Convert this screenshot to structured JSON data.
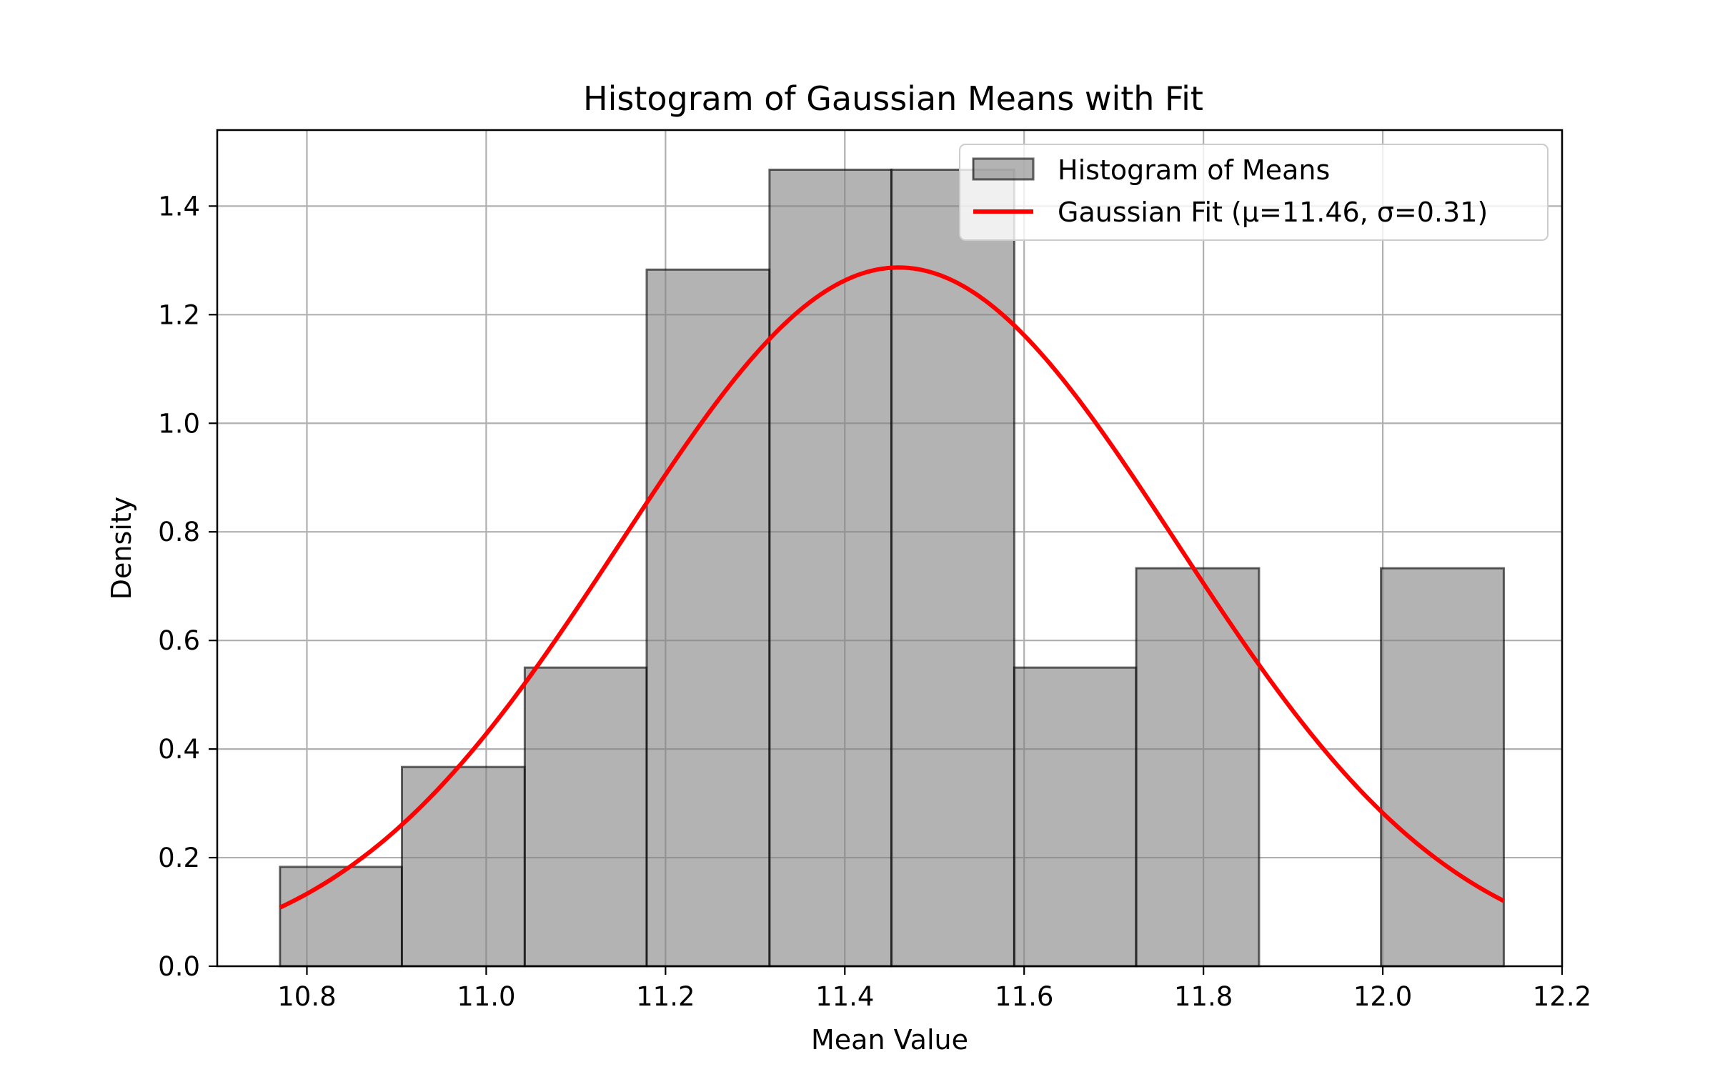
{
  "chart_data": {
    "type": "bar",
    "title": "Histogram of Gaussian Means with Fit",
    "xlabel": "Mean Value",
    "ylabel": "Density",
    "xlim": [
      10.7,
      12.2
    ],
    "ylim": [
      0.0,
      1.54
    ],
    "x_ticks": [
      "10.8",
      "11.0",
      "11.2",
      "11.4",
      "11.6",
      "11.8",
      "12.0",
      "12.2"
    ],
    "y_ticks": [
      "0.0",
      "0.2",
      "0.4",
      "0.6",
      "0.8",
      "1.0",
      "1.2",
      "1.4"
    ],
    "grid": true,
    "legend_position": "top-right",
    "bin_edges": [
      10.77,
      10.906,
      11.043,
      11.179,
      11.316,
      11.452,
      11.589,
      11.725,
      11.862,
      11.998,
      12.135
    ],
    "series": [
      {
        "name": "Histogram of Means",
        "kind": "histogram",
        "color": "#808080",
        "edge_color": "#000000",
        "values": [
          0.183,
          0.367,
          0.55,
          1.283,
          1.467,
          1.467,
          0.55,
          0.733,
          0.0,
          0.733
        ]
      },
      {
        "name": "Gaussian Fit (μ=11.46, σ=0.31)",
        "kind": "line",
        "color": "#ff0000",
        "mu": 11.46,
        "sigma": 0.31,
        "x_range": [
          10.77,
          12.135
        ]
      }
    ]
  }
}
